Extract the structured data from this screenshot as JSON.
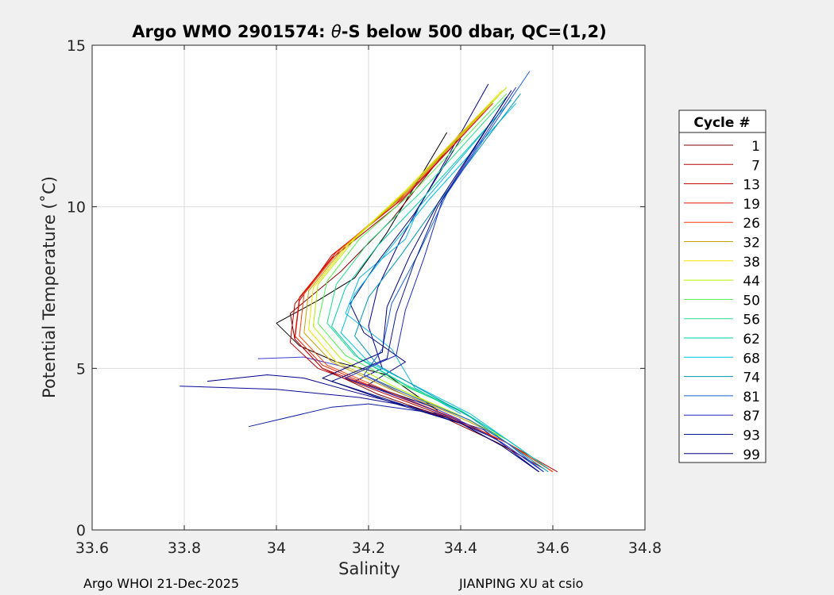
{
  "chart_data": {
    "type": "line",
    "title_prefix": "Argo WMO 2901574: ",
    "title_theta": "θ",
    "title_suffix": "-S below 500 dbar,  QC=(1,2)",
    "xlabel": "Salinity",
    "ylabel": "Potential Temperature (˚C)",
    "xlim": [
      33.6,
      34.8
    ],
    "ylim": [
      0,
      15
    ],
    "xticks": [
      33.6,
      33.8,
      34,
      34.2,
      34.4,
      34.6,
      34.8
    ],
    "xtick_labels": [
      "33.6",
      "33.8",
      "34",
      "34.2",
      "34.4",
      "34.6",
      "34.8"
    ],
    "yticks": [
      0,
      5,
      10,
      15
    ],
    "ytick_labels": [
      "0",
      "5",
      "10",
      "15"
    ],
    "grid": true,
    "legend_title": "Cycle #",
    "legend_placement": "right-outside",
    "series": [
      {
        "name": "1",
        "color": "#7f0000",
        "points": [
          [
            34.4,
            12.3
          ],
          [
            34.25,
            9.6
          ],
          [
            34.14,
            8.0
          ],
          [
            34.03,
            6.7
          ],
          [
            34.04,
            5.9
          ],
          [
            34.1,
            5.0
          ],
          [
            34.22,
            4.2
          ],
          [
            34.36,
            3.5
          ],
          [
            34.48,
            2.7
          ],
          [
            34.58,
            1.9
          ]
        ]
      },
      {
        "name": "7",
        "color": "#b30000",
        "points": [
          [
            34.45,
            12.9
          ],
          [
            34.26,
            10.0
          ],
          [
            34.12,
            8.4
          ],
          [
            34.04,
            7.0
          ],
          [
            34.03,
            5.8
          ],
          [
            34.09,
            5.0
          ],
          [
            34.22,
            4.3
          ],
          [
            34.37,
            3.5
          ],
          [
            34.5,
            2.7
          ],
          [
            34.61,
            1.8
          ]
        ]
      },
      {
        "name": "13",
        "color": "#cc0000",
        "points": [
          [
            34.46,
            13.1
          ],
          [
            34.26,
            10.1
          ],
          [
            34.12,
            8.5
          ],
          [
            34.05,
            7.1
          ],
          [
            34.04,
            5.9
          ],
          [
            34.1,
            5.0
          ],
          [
            34.23,
            4.3
          ],
          [
            34.38,
            3.5
          ],
          [
            34.5,
            2.7
          ],
          [
            34.6,
            1.8
          ]
        ]
      },
      {
        "name": "19",
        "color": "#e61a00",
        "points": [
          [
            34.47,
            13.2
          ],
          [
            34.27,
            10.2
          ],
          [
            34.13,
            8.6
          ],
          [
            34.05,
            7.2
          ],
          [
            34.04,
            6.0
          ],
          [
            34.1,
            5.1
          ],
          [
            34.23,
            4.3
          ],
          [
            34.38,
            3.5
          ],
          [
            34.5,
            2.7
          ],
          [
            34.6,
            1.8
          ]
        ]
      },
      {
        "name": "26",
        "color": "#ff4000",
        "points": [
          [
            34.47,
            13.3
          ],
          [
            34.27,
            10.3
          ],
          [
            34.14,
            8.7
          ],
          [
            34.06,
            7.3
          ],
          [
            34.05,
            6.0
          ],
          [
            34.11,
            5.1
          ],
          [
            34.24,
            4.3
          ],
          [
            34.38,
            3.5
          ],
          [
            34.5,
            2.7
          ],
          [
            34.6,
            1.8
          ]
        ]
      },
      {
        "name": "32",
        "color": "#c8a000",
        "points": [
          [
            34.48,
            13.4
          ],
          [
            34.28,
            10.4
          ],
          [
            34.15,
            8.8
          ],
          [
            34.07,
            7.4
          ],
          [
            34.06,
            6.1
          ],
          [
            34.12,
            5.2
          ],
          [
            34.24,
            4.4
          ],
          [
            34.38,
            3.6
          ],
          [
            34.5,
            2.8
          ],
          [
            34.59,
            1.9
          ]
        ]
      },
      {
        "name": "38",
        "color": "#f0e000",
        "points": [
          [
            34.49,
            13.6
          ],
          [
            34.28,
            10.5
          ],
          [
            34.16,
            8.9
          ],
          [
            34.08,
            7.5
          ],
          [
            34.07,
            6.2
          ],
          [
            34.13,
            5.2
          ],
          [
            34.25,
            4.4
          ],
          [
            34.39,
            3.6
          ],
          [
            34.5,
            2.8
          ],
          [
            34.59,
            1.9
          ]
        ]
      },
      {
        "name": "44",
        "color": "#b4f000",
        "points": [
          [
            34.5,
            13.7
          ],
          [
            34.29,
            10.6
          ],
          [
            34.17,
            9.0
          ],
          [
            34.09,
            7.6
          ],
          [
            34.08,
            6.3
          ],
          [
            34.14,
            5.3
          ],
          [
            34.26,
            4.4
          ],
          [
            34.39,
            3.6
          ],
          [
            34.5,
            2.8
          ],
          [
            34.59,
            1.9
          ]
        ]
      },
      {
        "name": "50",
        "color": "#55ee55",
        "points": [
          [
            34.5,
            13.5
          ],
          [
            34.3,
            10.5
          ],
          [
            34.18,
            9.0
          ],
          [
            34.11,
            7.7
          ],
          [
            34.09,
            6.4
          ],
          [
            34.15,
            5.4
          ],
          [
            34.27,
            4.5
          ],
          [
            34.4,
            3.7
          ],
          [
            34.5,
            2.8
          ],
          [
            34.59,
            1.9
          ]
        ]
      },
      {
        "name": "56",
        "color": "#22dd88",
        "points": [
          [
            34.5,
            13.4
          ],
          [
            34.31,
            10.4
          ],
          [
            34.2,
            8.9
          ],
          [
            34.13,
            7.6
          ],
          [
            34.11,
            6.4
          ],
          [
            34.17,
            5.4
          ],
          [
            34.28,
            4.5
          ],
          [
            34.4,
            3.7
          ],
          [
            34.5,
            2.8
          ],
          [
            34.59,
            1.9
          ]
        ]
      },
      {
        "name": "62",
        "color": "#00ccaa",
        "points": [
          [
            34.51,
            13.3
          ],
          [
            34.32,
            10.3
          ],
          [
            34.22,
            8.8
          ],
          [
            34.15,
            7.5
          ],
          [
            34.12,
            6.3
          ],
          [
            34.18,
            5.3
          ],
          [
            34.29,
            4.4
          ],
          [
            34.41,
            3.6
          ],
          [
            34.5,
            2.8
          ],
          [
            34.59,
            1.9
          ]
        ]
      },
      {
        "name": "68",
        "color": "#00bfe6",
        "points": [
          [
            34.52,
            13.2
          ],
          [
            34.33,
            10.2
          ],
          [
            34.24,
            8.6
          ],
          [
            34.17,
            7.3
          ],
          [
            34.14,
            6.1
          ],
          [
            34.2,
            5.2
          ],
          [
            34.31,
            4.4
          ],
          [
            34.42,
            3.6
          ],
          [
            34.5,
            2.8
          ],
          [
            34.59,
            1.9
          ]
        ]
      },
      {
        "name": "74",
        "color": "#0097b0",
        "points": [
          [
            34.53,
            13.5
          ],
          [
            34.35,
            10.1
          ],
          [
            34.27,
            8.5
          ],
          [
            34.2,
            7.2
          ],
          [
            34.17,
            6.0
          ],
          [
            34.22,
            5.1
          ],
          [
            34.32,
            4.3
          ],
          [
            34.42,
            3.5
          ],
          [
            34.5,
            2.7
          ],
          [
            34.59,
            1.8
          ]
        ]
      },
      {
        "name": "81",
        "color": "#1a5fd6",
        "points": [
          [
            34.55,
            14.2
          ],
          [
            34.37,
            10.4
          ],
          [
            34.31,
            8.6
          ],
          [
            34.25,
            7.0
          ],
          [
            34.23,
            5.6
          ],
          [
            34.19,
            4.8
          ],
          [
            34.3,
            4.1
          ],
          [
            34.42,
            3.4
          ],
          [
            34.5,
            2.7
          ],
          [
            34.58,
            1.8
          ]
        ]
      },
      {
        "name": "87",
        "color": "#1f2dbe",
        "points": [
          [
            34.52,
            13.7
          ],
          [
            34.36,
            10.2
          ],
          [
            34.32,
            8.4
          ],
          [
            34.28,
            6.8
          ],
          [
            34.26,
            5.4
          ],
          [
            34.15,
            4.7
          ],
          [
            34.29,
            4.0
          ],
          [
            34.41,
            3.3
          ],
          [
            34.49,
            2.7
          ],
          [
            34.58,
            1.8
          ]
        ]
      },
      {
        "name": "93",
        "color": "#0b1a8c",
        "points": [
          [
            34.5,
            13.4
          ],
          [
            34.35,
            10.0
          ],
          [
            34.3,
            8.3
          ],
          [
            34.26,
            6.7
          ],
          [
            34.24,
            5.3
          ],
          [
            34.12,
            4.6
          ],
          [
            34.27,
            3.9
          ],
          [
            34.4,
            3.3
          ],
          [
            34.49,
            2.6
          ],
          [
            34.57,
            1.8
          ]
        ]
      },
      {
        "name": "99",
        "color": "#00007a",
        "points": [
          [
            34.51,
            13.6
          ],
          [
            34.35,
            10.1
          ],
          [
            34.29,
            8.5
          ],
          [
            34.24,
            6.9
          ],
          [
            34.23,
            5.5
          ],
          [
            34.1,
            4.7
          ],
          [
            34.26,
            3.9
          ],
          [
            34.4,
            3.3
          ],
          [
            34.49,
            2.6
          ],
          [
            34.57,
            1.8
          ]
        ]
      }
    ],
    "extra_traces": [
      {
        "color": "#0a0a96",
        "points": [
          [
            33.79,
            4.45
          ],
          [
            34.0,
            4.35
          ],
          [
            34.18,
            4.1
          ],
          [
            34.3,
            3.8
          ],
          [
            34.45,
            3.1
          ],
          [
            34.57,
            1.8
          ]
        ]
      },
      {
        "color": "#0a1ea0",
        "points": [
          [
            33.94,
            3.2
          ],
          [
            34.12,
            3.8
          ],
          [
            34.2,
            3.9
          ],
          [
            34.35,
            3.6
          ],
          [
            34.48,
            2.8
          ]
        ]
      },
      {
        "color": "#00008c",
        "points": [
          [
            33.85,
            4.6
          ],
          [
            33.98,
            4.8
          ],
          [
            34.06,
            4.7
          ],
          [
            34.16,
            4.3
          ],
          [
            34.32,
            3.7
          ]
        ]
      },
      {
        "color": "#3c3cdc",
        "points": [
          [
            33.96,
            5.3
          ],
          [
            34.06,
            5.35
          ],
          [
            34.16,
            5.0
          ],
          [
            34.26,
            4.3
          ],
          [
            34.4,
            3.4
          ]
        ]
      },
      {
        "color": "#000000",
        "points": [
          [
            34.37,
            12.3
          ],
          [
            34.24,
            9.2
          ],
          [
            34.17,
            7.8
          ],
          [
            34.09,
            7.1
          ],
          [
            34.0,
            6.4
          ],
          [
            34.05,
            5.7
          ],
          [
            34.13,
            5.2
          ],
          [
            34.24,
            4.8
          ],
          [
            34.35,
            3.7
          ]
        ]
      },
      {
        "color": "#00008c",
        "points": [
          [
            34.46,
            13.8
          ],
          [
            34.35,
            11.0
          ],
          [
            34.27,
            9.0
          ],
          [
            34.22,
            7.5
          ],
          [
            34.2,
            6.3
          ],
          [
            34.23,
            5.0
          ],
          [
            34.17,
            4.6
          ],
          [
            34.3,
            4.0
          ]
        ]
      },
      {
        "color": "#14b4e6",
        "points": [
          [
            34.49,
            13.0
          ],
          [
            34.31,
            10.0
          ],
          [
            34.28,
            9.0
          ],
          [
            34.18,
            7.8
          ],
          [
            34.15,
            6.7
          ],
          [
            34.25,
            5.6
          ],
          [
            34.3,
            4.4
          ],
          [
            34.4,
            3.6
          ]
        ]
      },
      {
        "color": "#0a0a78",
        "points": [
          [
            34.4,
            12.1
          ],
          [
            34.3,
            9.8
          ],
          [
            34.22,
            8.3
          ],
          [
            34.16,
            7.0
          ],
          [
            34.19,
            6.1
          ],
          [
            34.28,
            5.2
          ],
          [
            34.2,
            4.5
          ],
          [
            34.34,
            3.8
          ]
        ]
      }
    ]
  },
  "footer": {
    "left": "Argo WHOI 21-Dec-2025",
    "right": "JIANPING XU at csio"
  }
}
